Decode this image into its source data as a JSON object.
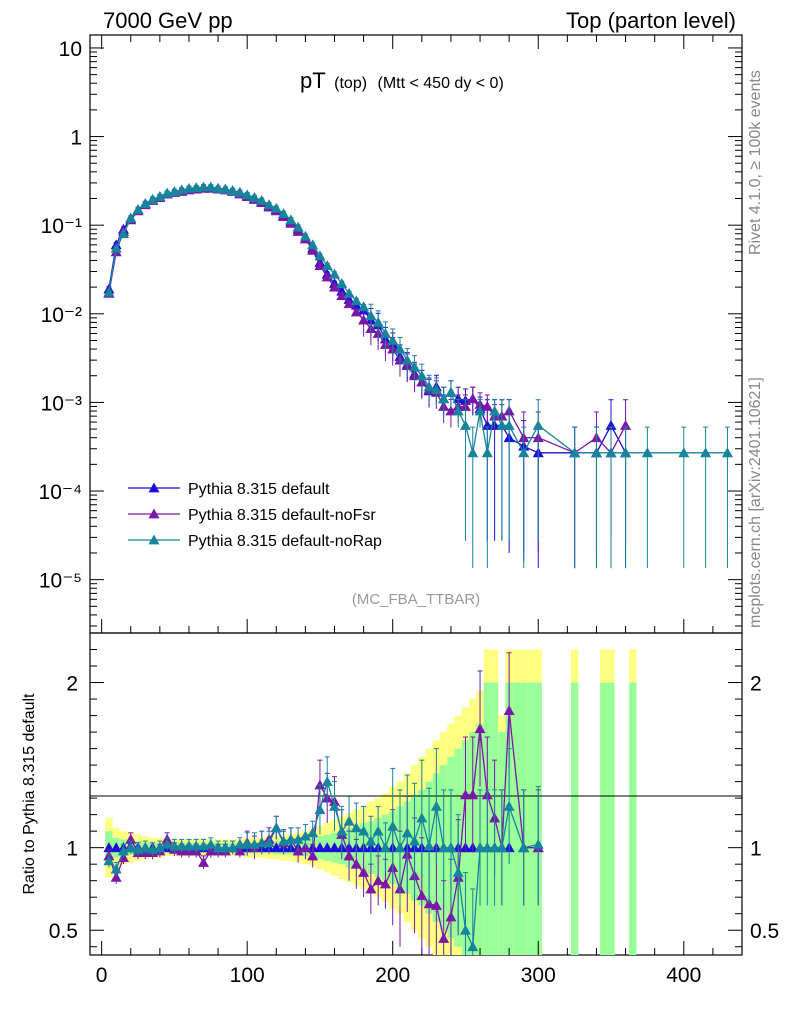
{
  "header": {
    "left": "7000 GeV pp",
    "right": "Top (parton level)"
  },
  "side": {
    "rivet": "Rivet 4.1.0, ≥ 100k events",
    "mcplots": "mcplots.cern.ch [arXiv:2401.10621]"
  },
  "chart_data": [
    {
      "type": "line",
      "title_main": "pT",
      "title_sub1": "(top)",
      "title_sub2": "(Mtt < 450 dy < 0)",
      "reference": "(MC_FBA_TTBAR)",
      "yscale": "log",
      "ylim": [
        2.5e-06,
        14
      ],
      "xlim": [
        -8,
        440
      ],
      "y_tick_labels": [
        {
          "value": 10,
          "label": "10"
        },
        {
          "value": 1,
          "label": "1"
        },
        {
          "value": 0.1,
          "label": "10⁻¹"
        },
        {
          "value": 0.01,
          "label": "10⁻²"
        },
        {
          "value": 0.001,
          "label": "10⁻³"
        },
        {
          "value": 0.0001,
          "label": "10⁻⁴"
        },
        {
          "value": 1e-05,
          "label": "10⁻⁵"
        }
      ],
      "legend": [
        "Pythia 8.315 default",
        "Pythia 8.315 default-noFsr",
        "Pythia 8.315 default-noRap"
      ],
      "series": [
        {
          "name": "Pythia 8.315 default",
          "color": "#1c0fd6",
          "x": [
            5,
            10,
            15,
            20,
            25,
            30,
            35,
            40,
            45,
            50,
            55,
            60,
            65,
            70,
            75,
            80,
            85,
            90,
            95,
            100,
            105,
            110,
            115,
            120,
            125,
            130,
            135,
            140,
            145,
            150,
            155,
            160,
            165,
            170,
            175,
            180,
            185,
            190,
            195,
            200,
            205,
            210,
            215,
            220,
            225,
            230,
            235,
            240,
            245,
            250,
            255,
            260,
            265,
            270,
            275,
            280,
            290,
            300,
            325,
            340,
            350,
            360
          ],
          "y": [
            0.019,
            0.06,
            0.09,
            0.12,
            0.15,
            0.175,
            0.195,
            0.21,
            0.225,
            0.235,
            0.245,
            0.255,
            0.26,
            0.265,
            0.265,
            0.26,
            0.255,
            0.245,
            0.23,
            0.215,
            0.2,
            0.185,
            0.165,
            0.15,
            0.13,
            0.11,
            0.09,
            0.07,
            0.055,
            0.038,
            0.028,
            0.022,
            0.018,
            0.0145,
            0.0125,
            0.011,
            0.0085,
            0.0075,
            0.0052,
            0.0045,
            0.0033,
            0.0027,
            0.0021,
            0.0017,
            0.00135,
            0.0015,
            0.0011,
            0.0013,
            0.0011,
            0.00105,
            0.0011,
            0.00085,
            0.00055,
            0.00055,
            0.00055,
            0.0004,
            0.00032,
            0.00027,
            0.00027,
            0.00027,
            0.00055,
            0.00027
          ]
        },
        {
          "name": "Pythia 8.315 default-noFsr",
          "color": "#7a17a8",
          "x": [
            5,
            10,
            15,
            20,
            25,
            30,
            35,
            40,
            45,
            50,
            55,
            60,
            65,
            70,
            75,
            80,
            85,
            90,
            95,
            100,
            105,
            110,
            115,
            120,
            125,
            130,
            135,
            140,
            145,
            150,
            155,
            160,
            165,
            170,
            175,
            180,
            185,
            190,
            195,
            200,
            205,
            210,
            215,
            220,
            225,
            230,
            235,
            240,
            245,
            250,
            255,
            260,
            265,
            270,
            275,
            280,
            290,
            300,
            325,
            340,
            350,
            360
          ],
          "y": [
            0.017,
            0.05,
            0.085,
            0.115,
            0.145,
            0.17,
            0.19,
            0.205,
            0.225,
            0.235,
            0.24,
            0.25,
            0.255,
            0.26,
            0.26,
            0.255,
            0.25,
            0.24,
            0.225,
            0.21,
            0.195,
            0.18,
            0.16,
            0.145,
            0.125,
            0.105,
            0.085,
            0.07,
            0.052,
            0.035,
            0.026,
            0.02,
            0.016,
            0.013,
            0.0105,
            0.0085,
            0.0068,
            0.006,
            0.0045,
            0.004,
            0.003,
            0.0026,
            0.002,
            0.0017,
            0.0014,
            0.0013,
            0.0009,
            0.0008,
            0.0009,
            0.0009,
            0.0011,
            0.00095,
            0.0009,
            0.0007,
            0.0007,
            0.0008,
            0.0004,
            0.0004,
            0.00027,
            0.0004,
            0.00027,
            0.00055
          ]
        },
        {
          "name": "Pythia 8.315 default-noRap",
          "color": "#17849e",
          "x": [
            5,
            10,
            15,
            20,
            25,
            30,
            35,
            40,
            45,
            50,
            55,
            60,
            65,
            70,
            75,
            80,
            85,
            90,
            95,
            100,
            105,
            110,
            115,
            120,
            125,
            130,
            135,
            140,
            145,
            150,
            155,
            160,
            165,
            170,
            175,
            180,
            185,
            190,
            195,
            200,
            205,
            210,
            215,
            220,
            225,
            230,
            235,
            240,
            245,
            250,
            255,
            260,
            265,
            270,
            275,
            280,
            290,
            300,
            325,
            340,
            350,
            360,
            375,
            400,
            415,
            430
          ],
          "y": [
            0.0175,
            0.055,
            0.08,
            0.12,
            0.15,
            0.175,
            0.195,
            0.21,
            0.23,
            0.24,
            0.25,
            0.26,
            0.265,
            0.27,
            0.27,
            0.26,
            0.255,
            0.245,
            0.235,
            0.22,
            0.205,
            0.19,
            0.17,
            0.155,
            0.135,
            0.115,
            0.095,
            0.075,
            0.06,
            0.045,
            0.035,
            0.028,
            0.022,
            0.017,
            0.014,
            0.012,
            0.0095,
            0.008,
            0.006,
            0.005,
            0.004,
            0.003,
            0.0025,
            0.002,
            0.0015,
            0.0014,
            0.0011,
            0.0013,
            0.0008,
            0.00055,
            0.00027,
            0.0008,
            0.00027,
            0.0008,
            0.00055,
            0.00055,
            0.00027,
            0.00055,
            0.00027,
            0.00027,
            0.00027,
            0.00027,
            0.00027,
            0.00027,
            0.00027,
            0.00027
          ]
        }
      ]
    },
    {
      "type": "line",
      "ylabel": "Ratio to Pythia 8.315 default",
      "xlim": [
        -8,
        440
      ],
      "ylim": [
        0.35,
        2.3
      ],
      "x_tick_labels": [
        0,
        100,
        200,
        300,
        400
      ],
      "y_tick_labels": [
        {
          "value": 0.5,
          "label": "0.5"
        },
        {
          "value": 1,
          "label": "1"
        },
        {
          "value": 2,
          "label": "2"
        }
      ],
      "band": {
        "x": [
          5,
          10,
          15,
          20,
          25,
          30,
          35,
          40,
          45,
          50,
          55,
          60,
          65,
          70,
          75,
          80,
          85,
          90,
          95,
          100,
          105,
          110,
          115,
          120,
          125,
          130,
          135,
          140,
          145,
          150,
          155,
          160,
          165,
          170,
          175,
          180,
          185,
          190,
          195,
          200,
          205,
          210,
          215,
          220,
          225,
          230,
          235,
          240,
          245,
          250,
          255,
          260,
          265,
          270,
          275,
          280,
          285,
          290,
          295,
          300,
          325,
          345,
          350,
          365
        ],
        "yellow_halfwidth": [
          0.18,
          0.12,
          0.1,
          0.09,
          0.08,
          0.07,
          0.06,
          0.06,
          0.05,
          0.05,
          0.05,
          0.05,
          0.05,
          0.05,
          0.05,
          0.05,
          0.05,
          0.05,
          0.05,
          0.06,
          0.06,
          0.06,
          0.07,
          0.07,
          0.08,
          0.08,
          0.09,
          0.1,
          0.11,
          0.13,
          0.15,
          0.17,
          0.19,
          0.21,
          0.23,
          0.25,
          0.28,
          0.3,
          0.33,
          0.37,
          0.4,
          0.45,
          0.5,
          0.55,
          0.6,
          0.65,
          0.7,
          0.75,
          0.8,
          0.85,
          0.9,
          0.95,
          1.2,
          1.2,
          0.8,
          1.2,
          1.2,
          1.2,
          1.2,
          1.2,
          1.2,
          1.2,
          1.2,
          1.2
        ],
        "green_halfwidth": [
          0.1,
          0.06,
          0.05,
          0.04,
          0.04,
          0.03,
          0.03,
          0.03,
          0.03,
          0.03,
          0.03,
          0.03,
          0.03,
          0.03,
          0.03,
          0.03,
          0.03,
          0.03,
          0.03,
          0.03,
          0.03,
          0.03,
          0.03,
          0.04,
          0.04,
          0.04,
          0.05,
          0.05,
          0.06,
          0.07,
          0.08,
          0.09,
          0.1,
          0.12,
          0.13,
          0.15,
          0.16,
          0.18,
          0.2,
          0.22,
          0.25,
          0.28,
          0.32,
          0.35,
          0.4,
          0.45,
          0.5,
          0.55,
          0.6,
          0.65,
          0.7,
          0.75,
          1.0,
          1.0,
          0.7,
          1.0,
          1.0,
          1.0,
          1.0,
          1.0,
          1.0,
          1.0,
          1.0,
          1.0
        ]
      },
      "series": [
        {
          "name": "Pythia 8.315 default-noFsr",
          "color": "#7a17a8",
          "x": [
            5,
            10,
            15,
            20,
            25,
            30,
            35,
            40,
            45,
            50,
            55,
            60,
            65,
            70,
            75,
            80,
            85,
            90,
            95,
            100,
            105,
            110,
            115,
            120,
            125,
            130,
            135,
            140,
            145,
            150,
            155,
            160,
            165,
            170,
            175,
            180,
            185,
            190,
            195,
            200,
            205,
            210,
            215,
            220,
            225,
            230,
            235,
            240,
            245,
            250,
            255,
            260,
            265,
            270,
            275,
            280,
            290,
            300
          ],
          "y": [
            0.95,
            0.82,
            0.94,
            1.05,
            0.97,
            0.97,
            0.97,
            0.98,
            1.05,
            0.99,
            0.98,
            0.98,
            0.98,
            0.91,
            0.98,
            0.98,
            0.98,
            1.0,
            0.98,
            1.03,
            1.0,
            1.03,
            1.05,
            1.12,
            1.03,
            1.05,
            0.98,
            1.0,
            0.95,
            1.38,
            1.3,
            1.28,
            1.08,
            0.95,
            0.9,
            0.85,
            0.75,
            0.8,
            0.78,
            0.88,
            0.75,
            0.96,
            0.83,
            0.71,
            0.66,
            0.65,
            0.45,
            0.58,
            0.82,
            1.32,
            1.32,
            1.72,
            1.32,
            1.18,
            1.0,
            1.83,
            1.0,
            1.0
          ]
        },
        {
          "name": "Pythia 8.315 default-noRap",
          "color": "#17849e",
          "x": [
            5,
            10,
            15,
            20,
            25,
            30,
            35,
            40,
            45,
            50,
            55,
            60,
            65,
            70,
            75,
            80,
            85,
            90,
            95,
            100,
            105,
            110,
            115,
            120,
            125,
            130,
            135,
            140,
            145,
            150,
            155,
            160,
            165,
            170,
            175,
            180,
            185,
            190,
            195,
            200,
            205,
            210,
            215,
            220,
            225,
            230,
            235,
            240,
            245,
            250,
            255,
            260,
            265,
            270,
            275,
            280,
            290,
            300
          ],
          "y": [
            0.92,
            0.87,
            0.98,
            1.0,
            0.99,
            1.0,
            0.99,
            1.0,
            1.02,
            1.01,
            1.01,
            1.01,
            1.01,
            1.01,
            1.02,
            1.0,
            1.0,
            1.0,
            1.02,
            1.02,
            1.02,
            1.03,
            1.03,
            1.12,
            1.04,
            1.05,
            1.05,
            1.07,
            1.09,
            1.23,
            1.4,
            1.25,
            1.1,
            1.16,
            1.12,
            1.1,
            1.04,
            1.1,
            1.0,
            1.13,
            1.0,
            1.09,
            1.04,
            1.18,
            1.01,
            1.25,
            1.0,
            1.0,
            0.85,
            0.5,
            0.4,
            1.0,
            1.0,
            1.0,
            1.0,
            1.25,
            1.0,
            1.02
          ]
        }
      ]
    }
  ]
}
